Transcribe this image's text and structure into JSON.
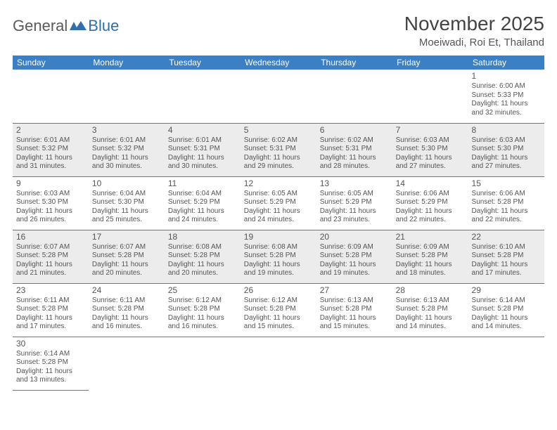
{
  "logo": {
    "part1": "General",
    "part2": "Blue"
  },
  "title": "November 2025",
  "location": "Moeiwadi, Roi Et, Thailand",
  "weekdays": [
    "Sunday",
    "Monday",
    "Tuesday",
    "Wednesday",
    "Thursday",
    "Friday",
    "Saturday"
  ],
  "colors": {
    "header_bg": "#3b7fc4",
    "header_text": "#ffffff",
    "shaded_bg": "#ececec",
    "border": "#3b7fc4",
    "text": "#555555",
    "logo_gray": "#5a5a5a",
    "logo_blue": "#2f6fb0"
  },
  "days": [
    {
      "n": 1,
      "sr": "6:00 AM",
      "ss": "5:33 PM",
      "dl": "11 hours and 32 minutes."
    },
    {
      "n": 2,
      "sr": "6:01 AM",
      "ss": "5:32 PM",
      "dl": "11 hours and 31 minutes."
    },
    {
      "n": 3,
      "sr": "6:01 AM",
      "ss": "5:32 PM",
      "dl": "11 hours and 30 minutes."
    },
    {
      "n": 4,
      "sr": "6:01 AM",
      "ss": "5:31 PM",
      "dl": "11 hours and 30 minutes."
    },
    {
      "n": 5,
      "sr": "6:02 AM",
      "ss": "5:31 PM",
      "dl": "11 hours and 29 minutes."
    },
    {
      "n": 6,
      "sr": "6:02 AM",
      "ss": "5:31 PM",
      "dl": "11 hours and 28 minutes."
    },
    {
      "n": 7,
      "sr": "6:03 AM",
      "ss": "5:30 PM",
      "dl": "11 hours and 27 minutes."
    },
    {
      "n": 8,
      "sr": "6:03 AM",
      "ss": "5:30 PM",
      "dl": "11 hours and 27 minutes."
    },
    {
      "n": 9,
      "sr": "6:03 AM",
      "ss": "5:30 PM",
      "dl": "11 hours and 26 minutes."
    },
    {
      "n": 10,
      "sr": "6:04 AM",
      "ss": "5:30 PM",
      "dl": "11 hours and 25 minutes."
    },
    {
      "n": 11,
      "sr": "6:04 AM",
      "ss": "5:29 PM",
      "dl": "11 hours and 24 minutes."
    },
    {
      "n": 12,
      "sr": "6:05 AM",
      "ss": "5:29 PM",
      "dl": "11 hours and 24 minutes."
    },
    {
      "n": 13,
      "sr": "6:05 AM",
      "ss": "5:29 PM",
      "dl": "11 hours and 23 minutes."
    },
    {
      "n": 14,
      "sr": "6:06 AM",
      "ss": "5:29 PM",
      "dl": "11 hours and 22 minutes."
    },
    {
      "n": 15,
      "sr": "6:06 AM",
      "ss": "5:28 PM",
      "dl": "11 hours and 22 minutes."
    },
    {
      "n": 16,
      "sr": "6:07 AM",
      "ss": "5:28 PM",
      "dl": "11 hours and 21 minutes."
    },
    {
      "n": 17,
      "sr": "6:07 AM",
      "ss": "5:28 PM",
      "dl": "11 hours and 20 minutes."
    },
    {
      "n": 18,
      "sr": "6:08 AM",
      "ss": "5:28 PM",
      "dl": "11 hours and 20 minutes."
    },
    {
      "n": 19,
      "sr": "6:08 AM",
      "ss": "5:28 PM",
      "dl": "11 hours and 19 minutes."
    },
    {
      "n": 20,
      "sr": "6:09 AM",
      "ss": "5:28 PM",
      "dl": "11 hours and 19 minutes."
    },
    {
      "n": 21,
      "sr": "6:09 AM",
      "ss": "5:28 PM",
      "dl": "11 hours and 18 minutes."
    },
    {
      "n": 22,
      "sr": "6:10 AM",
      "ss": "5:28 PM",
      "dl": "11 hours and 17 minutes."
    },
    {
      "n": 23,
      "sr": "6:11 AM",
      "ss": "5:28 PM",
      "dl": "11 hours and 17 minutes."
    },
    {
      "n": 24,
      "sr": "6:11 AM",
      "ss": "5:28 PM",
      "dl": "11 hours and 16 minutes."
    },
    {
      "n": 25,
      "sr": "6:12 AM",
      "ss": "5:28 PM",
      "dl": "11 hours and 16 minutes."
    },
    {
      "n": 26,
      "sr": "6:12 AM",
      "ss": "5:28 PM",
      "dl": "11 hours and 15 minutes."
    },
    {
      "n": 27,
      "sr": "6:13 AM",
      "ss": "5:28 PM",
      "dl": "11 hours and 15 minutes."
    },
    {
      "n": 28,
      "sr": "6:13 AM",
      "ss": "5:28 PM",
      "dl": "11 hours and 14 minutes."
    },
    {
      "n": 29,
      "sr": "6:14 AM",
      "ss": "5:28 PM",
      "dl": "11 hours and 14 minutes."
    },
    {
      "n": 30,
      "sr": "6:14 AM",
      "ss": "5:28 PM",
      "dl": "11 hours and 13 minutes."
    }
  ],
  "labels": {
    "sunrise": "Sunrise:",
    "sunset": "Sunset:",
    "daylight": "Daylight:"
  },
  "layout": {
    "first_weekday_index": 6,
    "rows": 6,
    "cols": 7,
    "shaded_rows": [
      1,
      3
    ]
  }
}
